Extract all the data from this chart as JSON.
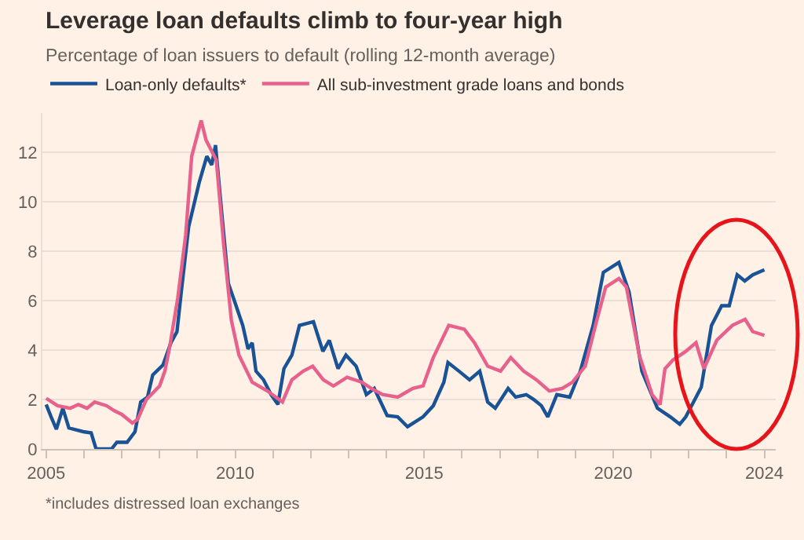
{
  "chart_data": {
    "type": "line",
    "title": "Leverage loan defaults climb to four-year high",
    "subtitle": "Percentage of loan issuers to default (rolling 12-month average)",
    "annotations": [
      "*includes distressed loan exchanges"
    ],
    "xlim": [
      2004.9,
      2024.3
    ],
    "ylim": [
      0,
      13.6
    ],
    "xticks": [
      2005,
      {
        "value": 2006,
        "label": null
      },
      {
        "value": 2007,
        "label": null
      },
      {
        "value": 2008,
        "label": null
      },
      {
        "value": 2009,
        "label": null
      },
      2010,
      {
        "value": 2011,
        "label": null
      },
      {
        "value": 2012,
        "label": null
      },
      {
        "value": 2013,
        "label": null
      },
      {
        "value": 2014,
        "label": null
      },
      2015,
      {
        "value": 2016,
        "label": null
      },
      {
        "value": 2017,
        "label": null
      },
      {
        "value": 2018,
        "label": null
      },
      {
        "value": 2019,
        "label": null
      },
      2020,
      {
        "value": 2021,
        "label": null
      },
      {
        "value": 2022,
        "label": null
      },
      {
        "value": 2023,
        "label": null
      },
      2024
    ],
    "yticks": [
      0,
      2,
      4,
      6,
      8,
      10,
      12
    ],
    "grid": "y",
    "legend": "top left",
    "marker": "none",
    "line_style": "solid",
    "series": [
      {
        "name": "Loan-only defaults*",
        "color": "#1a5296",
        "x": [
          2005.0,
          2005.13,
          2005.27,
          2005.44,
          2005.6,
          2005.98,
          2006.19,
          2006.32,
          2006.73,
          2006.87,
          2007.14,
          2007.35,
          2007.5,
          2007.68,
          2007.82,
          2008.09,
          2008.3,
          2008.46,
          2008.57,
          2008.77,
          2009.05,
          2009.25,
          2009.38,
          2009.48,
          2009.66,
          2009.82,
          2010.0,
          2010.2,
          2010.34,
          2010.45,
          2010.55,
          2010.75,
          2010.95,
          2011.13,
          2011.29,
          2011.5,
          2011.7,
          2012.07,
          2012.32,
          2012.49,
          2012.72,
          2012.93,
          2013.2,
          2013.47,
          2013.68,
          2014.02,
          2014.3,
          2014.56,
          2014.97,
          2015.24,
          2015.52,
          2015.63,
          2015.92,
          2016.2,
          2016.47,
          2016.68,
          2016.88,
          2017.22,
          2017.42,
          2017.7,
          2017.9,
          2018.1,
          2018.27,
          2018.51,
          2018.85,
          2019.13,
          2019.47,
          2019.74,
          2020.15,
          2020.42,
          2020.76,
          2021.17,
          2021.51,
          2021.76,
          2021.92,
          2022.33,
          2022.6,
          2022.87,
          2023.07,
          2023.28,
          2023.48,
          2023.69,
          2024.0
        ],
        "values": [
          1.8,
          1.3,
          0.8,
          1.65,
          0.85,
          0.7,
          0.65,
          0,
          0,
          0.27,
          0.27,
          0.7,
          1.9,
          2.1,
          3.0,
          3.4,
          4.3,
          4.75,
          6.3,
          9.0,
          10.8,
          11.85,
          11.5,
          12.3,
          9.3,
          6.7,
          5.9,
          5.0,
          4.05,
          4.3,
          3.15,
          2.8,
          2.2,
          1.8,
          3.25,
          3.8,
          5.0,
          5.15,
          3.95,
          4.4,
          3.25,
          3.8,
          3.35,
          2.2,
          2.45,
          1.35,
          1.3,
          0.9,
          1.3,
          1.75,
          2.7,
          3.5,
          3.15,
          2.8,
          3.15,
          1.9,
          1.65,
          2.45,
          2.1,
          2.2,
          2.0,
          1.75,
          1.3,
          2.2,
          2.1,
          3.15,
          5.0,
          7.15,
          7.55,
          6.35,
          3.15,
          1.65,
          1.3,
          1.0,
          1.3,
          2.5,
          5.0,
          5.8,
          5.8,
          7.05,
          6.8,
          7.05,
          7.25
        ]
      },
      {
        "name": "All sub-investment grade loans and bonds",
        "color": "#e8618c",
        "x": [
          2005.0,
          2005.3,
          2005.64,
          2005.85,
          2006.08,
          2006.28,
          2006.6,
          2006.8,
          2007.0,
          2007.28,
          2007.42,
          2007.65,
          2008.0,
          2008.14,
          2008.27,
          2008.48,
          2008.69,
          2008.85,
          2009.1,
          2009.23,
          2009.5,
          2009.7,
          2009.9,
          2010.1,
          2010.45,
          2010.85,
          2011.25,
          2011.5,
          2011.8,
          2012.05,
          2012.33,
          2012.6,
          2012.96,
          2013.35,
          2013.6,
          2013.9,
          2014.3,
          2014.7,
          2014.97,
          2015.24,
          2015.65,
          2016.06,
          2016.33,
          2016.68,
          2017.02,
          2017.29,
          2017.63,
          2017.97,
          2018.31,
          2018.65,
          2018.92,
          2019.26,
          2019.53,
          2019.8,
          2020.15,
          2020.35,
          2020.69,
          2021.03,
          2021.24,
          2021.37,
          2021.58,
          2021.92,
          2022.19,
          2022.4,
          2022.74,
          2023.15,
          2023.49,
          2023.69,
          2024.0
        ],
        "values": [
          2.05,
          1.75,
          1.65,
          1.8,
          1.65,
          1.9,
          1.75,
          1.55,
          1.4,
          1.05,
          1.2,
          2.0,
          2.55,
          3.15,
          4.15,
          6.1,
          8.65,
          11.85,
          13.3,
          12.5,
          11.7,
          8.2,
          5.2,
          3.8,
          2.7,
          2.35,
          1.9,
          2.8,
          3.15,
          3.35,
          2.8,
          2.55,
          2.9,
          2.7,
          2.45,
          2.2,
          2.1,
          2.45,
          2.55,
          3.7,
          5.0,
          4.85,
          4.3,
          3.35,
          3.15,
          3.7,
          3.15,
          2.8,
          2.35,
          2.45,
          2.7,
          3.35,
          5.0,
          6.55,
          6.9,
          6.55,
          3.8,
          2.2,
          1.8,
          3.25,
          3.6,
          3.95,
          4.3,
          3.25,
          4.4,
          5.0,
          5.25,
          4.75,
          4.6
        ]
      }
    ]
  }
}
